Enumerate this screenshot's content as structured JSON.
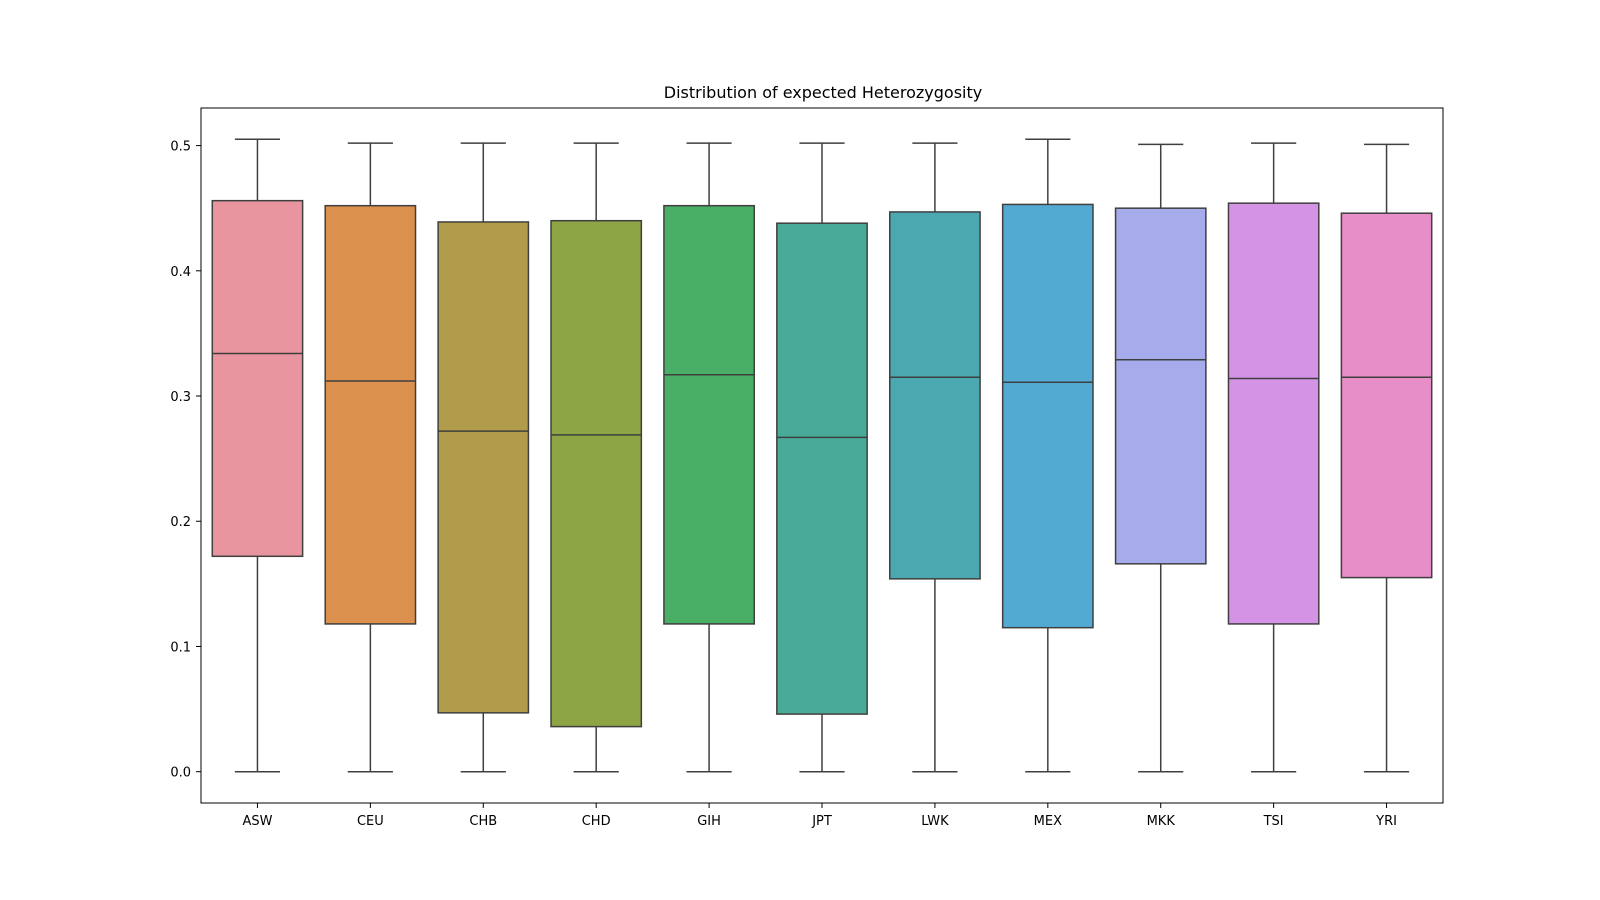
{
  "chart_data": {
    "type": "box",
    "title": "Distribution of expected Heterozygosity",
    "xlabel": "",
    "ylabel": "",
    "ylim": [
      -0.025,
      0.53
    ],
    "yticks": [
      0.0,
      0.1,
      0.2,
      0.3,
      0.4,
      0.5
    ],
    "ytick_labels": [
      "0.0",
      "0.1",
      "0.2",
      "0.3",
      "0.4",
      "0.5"
    ],
    "grid": false,
    "legend": "none",
    "categories": [
      "ASW",
      "CEU",
      "CHB",
      "CHD",
      "GIH",
      "JPT",
      "LWK",
      "MEX",
      "MKK",
      "TSI",
      "YRI"
    ],
    "boxes": [
      {
        "category": "ASW",
        "min": 0.0,
        "q1": 0.172,
        "median": 0.334,
        "q3": 0.456,
        "max": 0.505,
        "color": "#e8959f"
      },
      {
        "category": "CEU",
        "min": 0.0,
        "q1": 0.118,
        "median": 0.312,
        "q3": 0.452,
        "max": 0.502,
        "color": "#db904d"
      },
      {
        "category": "CHB",
        "min": 0.0,
        "q1": 0.047,
        "median": 0.272,
        "q3": 0.439,
        "max": 0.502,
        "color": "#b09c4a"
      },
      {
        "category": "CHD",
        "min": 0.0,
        "q1": 0.036,
        "median": 0.269,
        "q3": 0.44,
        "max": 0.502,
        "color": "#8ea546"
      },
      {
        "category": "GIH",
        "min": 0.0,
        "q1": 0.118,
        "median": 0.317,
        "q3": 0.452,
        "max": 0.502,
        "color": "#4aaf66"
      },
      {
        "category": "JPT",
        "min": 0.0,
        "q1": 0.046,
        "median": 0.267,
        "q3": 0.438,
        "max": 0.502,
        "color": "#49ab97"
      },
      {
        "category": "LWK",
        "min": 0.0,
        "q1": 0.154,
        "median": 0.315,
        "q3": 0.447,
        "max": 0.502,
        "color": "#4ba8b0"
      },
      {
        "category": "MEX",
        "min": 0.0,
        "q1": 0.115,
        "median": 0.311,
        "q3": 0.453,
        "max": 0.505,
        "color": "#52aad3"
      },
      {
        "category": "MKK",
        "min": 0.0,
        "q1": 0.166,
        "median": 0.329,
        "q3": 0.45,
        "max": 0.501,
        "color": "#a6aceb"
      },
      {
        "category": "TSI",
        "min": 0.0,
        "q1": 0.118,
        "median": 0.314,
        "q3": 0.454,
        "max": 0.502,
        "color": "#d593e6"
      },
      {
        "category": "YRI",
        "min": 0.0,
        "q1": 0.155,
        "median": 0.315,
        "q3": 0.446,
        "max": 0.501,
        "color": "#e78dc8"
      }
    ]
  }
}
